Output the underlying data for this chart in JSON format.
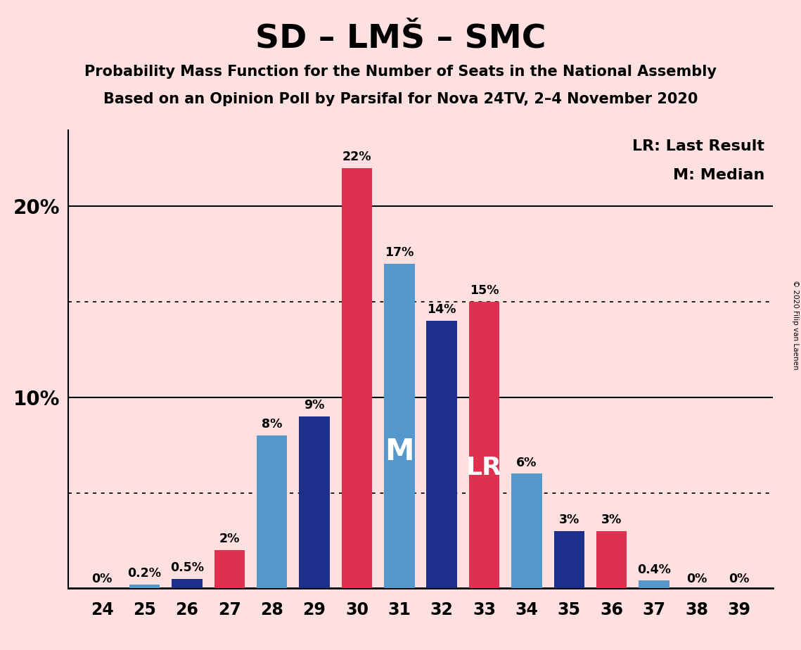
{
  "title": "SD – LMŠ – SMC",
  "subtitle1": "Probability Mass Function for the Number of Seats in the National Assembly",
  "subtitle2": "Based on an Opinion Poll by Parsifal for Nova 24TV, 2–4 November 2020",
  "copyright": "© 2020 Filip van Laenen",
  "seats": [
    24,
    25,
    26,
    27,
    28,
    29,
    30,
    31,
    32,
    33,
    34,
    35,
    36,
    37,
    38,
    39
  ],
  "values": [
    0.0,
    0.2,
    0.5,
    2.0,
    8.0,
    9.0,
    22.0,
    17.0,
    14.0,
    15.0,
    6.0,
    3.0,
    3.0,
    0.4,
    0.0,
    0.0
  ],
  "bar_colors": [
    "#5599CC",
    "#5599CC",
    "#1C2F8C",
    "#E03050",
    "#5599CC",
    "#1C2F8C",
    "#E03050",
    "#5599CC",
    "#1C2F8C",
    "#E03050",
    "#5599CC",
    "#1C2F8C",
    "#E03050",
    "#5599CC",
    "#5599CC",
    "#1C2F8C"
  ],
  "background_color": "#FFE0E0",
  "median_seat": 31,
  "lr_seat": 33,
  "ylim": [
    0,
    24
  ],
  "dotted_lines": [
    5,
    15
  ],
  "solid_lines": [
    10,
    20
  ],
  "legend_lr": "LR: Last Result",
  "legend_m": "M: Median",
  "bar_width": 0.72
}
